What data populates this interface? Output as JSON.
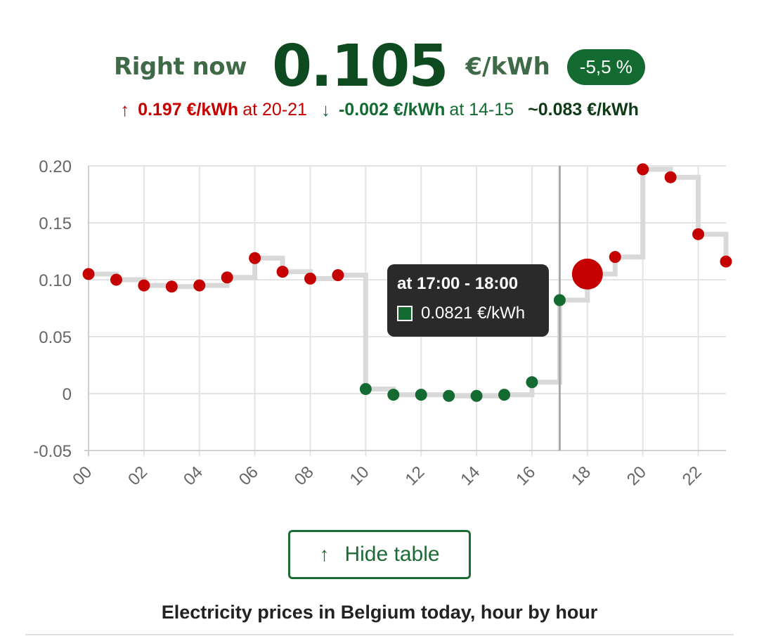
{
  "header": {
    "label": "Right now",
    "price": "0.105",
    "unit": "€/kWh",
    "change_badge": "-5,5 %"
  },
  "stats": {
    "max_arrow": "↑",
    "max_value": "0.197 €/kWh",
    "max_at": "at 20-21",
    "min_arrow": "↓",
    "min_value": "-0.002 €/kWh",
    "min_at": "at 14-15",
    "avg_value": "~0.083 €/kWh"
  },
  "tooltip": {
    "title": "at 17:00 - 18:00",
    "value": "0.0821 €/kWh"
  },
  "toggle": {
    "icon": "arrow-up-icon",
    "arrow": "↑",
    "label": "Hide table"
  },
  "table_caption": "Electricity prices in Belgium today, hour by hour",
  "colors": {
    "high": "#c40000",
    "low": "#136b31",
    "step": "#d9d9d9",
    "accent": "#1c6b35"
  },
  "chart_data": {
    "type": "scatter",
    "x": [
      "00",
      "01",
      "02",
      "03",
      "04",
      "05",
      "06",
      "07",
      "08",
      "09",
      "10",
      "11",
      "12",
      "13",
      "14",
      "15",
      "16",
      "17",
      "18",
      "19",
      "20",
      "21",
      "22",
      "23"
    ],
    "x_tick_labels": [
      "00",
      "02",
      "04",
      "06",
      "08",
      "10",
      "12",
      "14",
      "16",
      "18",
      "20",
      "22"
    ],
    "values": [
      0.105,
      0.1,
      0.095,
      0.094,
      0.095,
      0.102,
      0.119,
      0.107,
      0.101,
      0.104,
      0.004,
      -0.001,
      -0.001,
      -0.002,
      -0.002,
      -0.001,
      0.01,
      0.0821,
      0.105,
      0.12,
      0.197,
      0.19,
      0.14,
      0.116
    ],
    "colors_by_point": [
      "high",
      "high",
      "high",
      "high",
      "high",
      "high",
      "high",
      "high",
      "high",
      "high",
      "low",
      "low",
      "low",
      "low",
      "low",
      "low",
      "low",
      "low",
      "high",
      "high",
      "high",
      "high",
      "high",
      "high"
    ],
    "current_index": 18,
    "hover_index": 17,
    "ylim": [
      -0.05,
      0.2
    ],
    "y_ticks": [
      0.2,
      0.15,
      0.1,
      0.05,
      0,
      -0.05
    ],
    "y_tick_labels": [
      "0.20",
      "0.15",
      "0.10",
      "0.05",
      "0",
      "-0.05"
    ],
    "grid": true,
    "step_line": true
  }
}
